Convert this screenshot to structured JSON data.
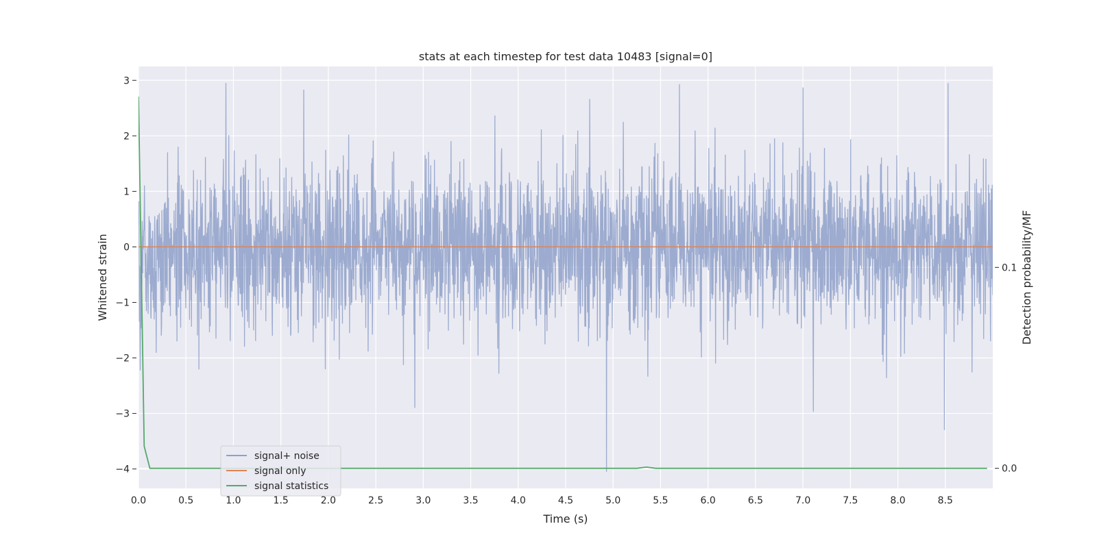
{
  "chart_data": {
    "type": "line",
    "title": "stats at each timestep for test data 10483 [signal=0]",
    "xlabel": "Time (s)",
    "ylabel": "Whitened strain",
    "y2label": "Detection probability/MF",
    "xlim": [
      0.0,
      9.0
    ],
    "ylim": [
      -4.35,
      3.25
    ],
    "y2lim": [
      -0.01,
      0.2
    ],
    "x_ticks": [
      "0.0",
      "0.5",
      "1.0",
      "1.5",
      "2.0",
      "2.5",
      "3.0",
      "3.5",
      "4.0",
      "4.5",
      "5.0",
      "5.5",
      "6.0",
      "6.5",
      "7.0",
      "7.5",
      "8.0",
      "8.5"
    ],
    "y_ticks": [
      "3",
      "2",
      "1",
      "0",
      "−1",
      "−2",
      "−3",
      "−4"
    ],
    "y2_ticks": [
      "0.1",
      "0.0"
    ],
    "grid": true,
    "legend_position": "lower-left",
    "noise": {
      "sigma": 0.7,
      "approx_max": 2.95,
      "approx_min": -4.05,
      "peaks": [
        [
          0.92,
          2.95
        ],
        [
          1.74,
          2.83
        ],
        [
          5.7,
          2.93
        ],
        [
          7.0,
          2.87
        ],
        [
          8.53,
          2.95
        ],
        [
          4.93,
          -4.05
        ],
        [
          8.49,
          -3.3
        ],
        [
          7.11,
          -2.97
        ],
        [
          2.91,
          -2.9
        ]
      ]
    },
    "series": [
      {
        "name": "signal+ noise",
        "color": "#8ea0c9",
        "axis": "left",
        "description": "whitened strain noise, approximately Gaussian"
      },
      {
        "name": "signal only",
        "color": "#dd8452",
        "axis": "left",
        "x": [
          0.0,
          9.0
        ],
        "y": [
          0.0,
          0.0
        ]
      },
      {
        "name": "signal statistics",
        "color": "#55a868",
        "axis": "right",
        "x": [
          0.0,
          0.06,
          0.12,
          0.5,
          1.0,
          2.0,
          3.0,
          4.0,
          5.0,
          5.25,
          5.35,
          5.45,
          6.0,
          7.0,
          8.0,
          8.94
        ],
        "y": [
          0.185,
          0.011,
          0.0,
          0.0,
          0.0,
          0.0,
          0.0,
          0.0,
          0.0,
          0.0,
          0.0006,
          0.0,
          0.0,
          0.0,
          0.0,
          0.0
        ]
      }
    ],
    "colors": {
      "background": "#eaeaf2",
      "grid": "#ffffff"
    }
  }
}
